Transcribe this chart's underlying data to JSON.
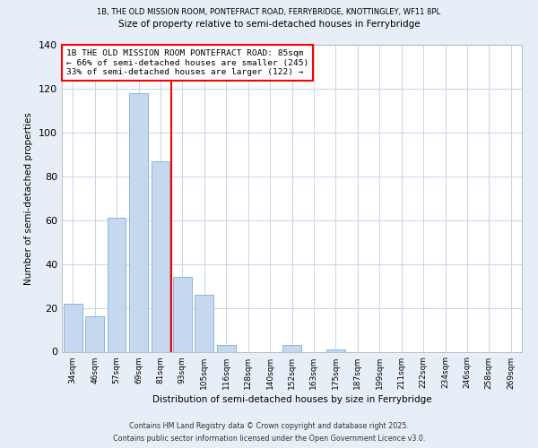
{
  "title_line1": "1B, THE OLD MISSION ROOM, PONTEFRACT ROAD, FERRYBRIDGE, KNOTTINGLEY, WF11 8PL",
  "title_line2": "Size of property relative to semi-detached houses in Ferrybridge",
  "xlabel": "Distribution of semi-detached houses by size in Ferrybridge",
  "ylabel": "Number of semi-detached properties",
  "bar_labels": [
    "34sqm",
    "46sqm",
    "57sqm",
    "69sqm",
    "81sqm",
    "93sqm",
    "105sqm",
    "116sqm",
    "128sqm",
    "140sqm",
    "152sqm",
    "163sqm",
    "175sqm",
    "187sqm",
    "199sqm",
    "211sqm",
    "222sqm",
    "234sqm",
    "246sqm",
    "258sqm",
    "269sqm"
  ],
  "bar_values": [
    22,
    16,
    61,
    118,
    87,
    34,
    26,
    3,
    0,
    0,
    3,
    0,
    1,
    0,
    0,
    0,
    0,
    0,
    0,
    0,
    0
  ],
  "bar_color": "#c5d8f0",
  "bar_edge_color": "#7aafd4",
  "vline_x": 4.5,
  "vline_color": "red",
  "ylim": [
    0,
    140
  ],
  "yticks": [
    0,
    20,
    40,
    60,
    80,
    100,
    120,
    140
  ],
  "annotation_title": "1B THE OLD MISSION ROOM PONTEFRACT ROAD: 85sqm",
  "annotation_line2": "← 66% of semi-detached houses are smaller (245)",
  "annotation_line3": "33% of semi-detached houses are larger (122) →",
  "footer_line1": "Contains HM Land Registry data © Crown copyright and database right 2025.",
  "footer_line2": "Contains public sector information licensed under the Open Government Licence v3.0.",
  "bg_color": "#e8eef8",
  "plot_bg_color": "#ffffff",
  "grid_color": "#c8d4e8"
}
